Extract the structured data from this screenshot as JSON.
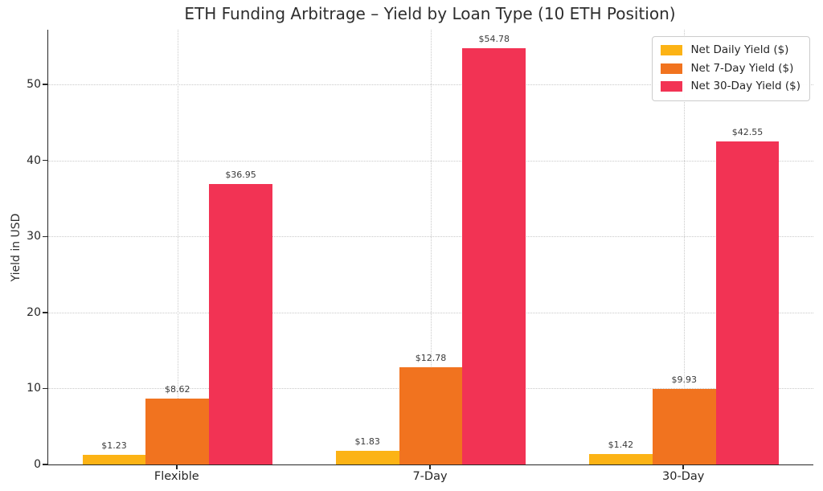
{
  "chart_data": {
    "type": "bar",
    "title": "ETH Funding Arbitrage – Yield by Loan Type (10 ETH Position)",
    "xlabel": "",
    "ylabel": "Yield in USD",
    "categories": [
      "Flexible",
      "7-Day",
      "30-Day"
    ],
    "series": [
      {
        "name": "Net Daily Yield ($)",
        "color": "#FCB315",
        "values": [
          1.23,
          1.83,
          1.42
        ],
        "labels": [
          "$1.23",
          "$1.83",
          "$1.42"
        ]
      },
      {
        "name": "Net 7-Day Yield ($)",
        "color": "#F1731F",
        "values": [
          8.62,
          12.78,
          9.93
        ],
        "labels": [
          "$8.62",
          "$12.78",
          "$9.93"
        ]
      },
      {
        "name": "Net 30-Day Yield ($)",
        "color": "#F23354",
        "values": [
          36.95,
          54.78,
          42.55
        ],
        "labels": [
          "$36.95",
          "$54.78",
          "$42.55"
        ]
      }
    ],
    "yticks": [
      0,
      10,
      20,
      30,
      40,
      50
    ],
    "ylim": [
      0,
      57.2
    ],
    "xlim": [
      -0.51,
      2.51
    ],
    "bar_width": 0.25,
    "bar_offsets": [
      -0.25,
      0,
      0.25
    ],
    "grid": true,
    "grid_style": "dotted",
    "legend_position": "upper-right"
  }
}
